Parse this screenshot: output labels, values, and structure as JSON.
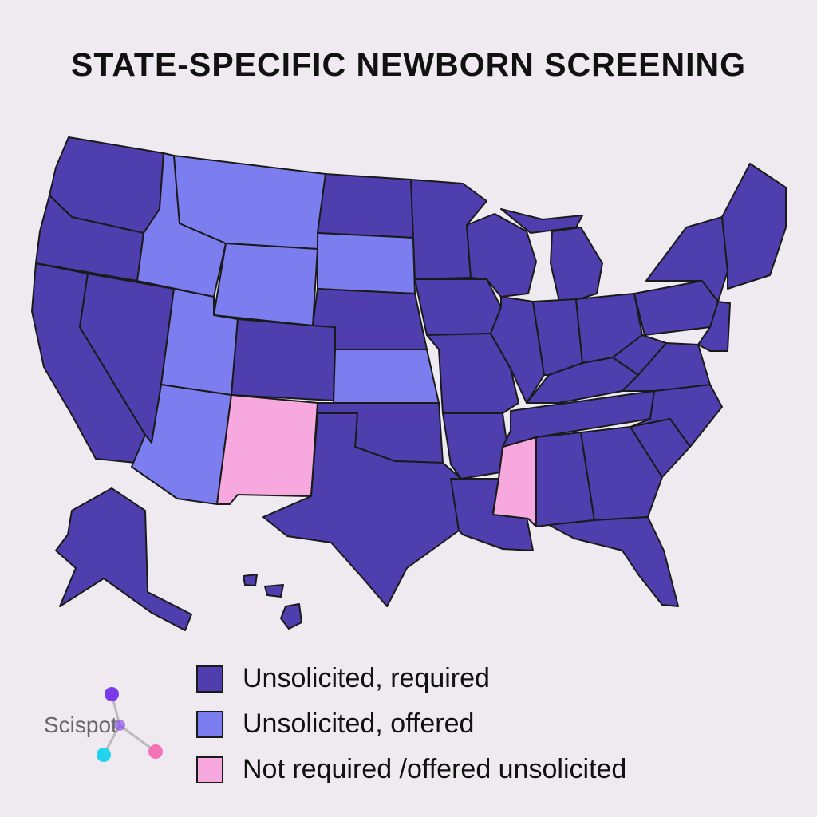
{
  "title": "STATE-SPECIFIC NEWBORN SCREENING",
  "colors": {
    "required": "#4f3fae",
    "offered": "#7c7ef0",
    "not_required": "#f7a8de",
    "border": "#1a1a1a",
    "background": "#efeaf0"
  },
  "legend": [
    {
      "label": "Unsolicited, required",
      "color_key": "required"
    },
    {
      "label": "Unsolicited, offered",
      "color_key": "offered"
    },
    {
      "label": "Not required /offered unsolicited",
      "color_key": "not_required"
    }
  ],
  "logo": {
    "text": "Scispot",
    "node_colors": [
      "#7c3aed",
      "#22d3ee",
      "#f472b6"
    ]
  },
  "state_categories": {
    "required": [
      "Washington",
      "Oregon",
      "California",
      "Nevada",
      "North Dakota",
      "Colorado",
      "Nebraska",
      "Minnesota",
      "Iowa",
      "Missouri",
      "Wisconsin",
      "Illinois",
      "Michigan",
      "Indiana",
      "Ohio",
      "Kentucky",
      "Tennessee",
      "Arkansas",
      "Louisiana",
      "Alabama",
      "Georgia",
      "Florida",
      "South Carolina",
      "North Carolina",
      "Virginia",
      "West Virginia",
      "Pennsylvania",
      "New York",
      "Maine",
      "Texas",
      "Oklahoma",
      "Alaska",
      "Hawaii"
    ],
    "offered": [
      "Idaho",
      "Montana",
      "Wyoming",
      "South Dakota",
      "Utah",
      "Arizona",
      "Kansas"
    ],
    "not_required": [
      "New Mexico",
      "Mississippi"
    ]
  }
}
